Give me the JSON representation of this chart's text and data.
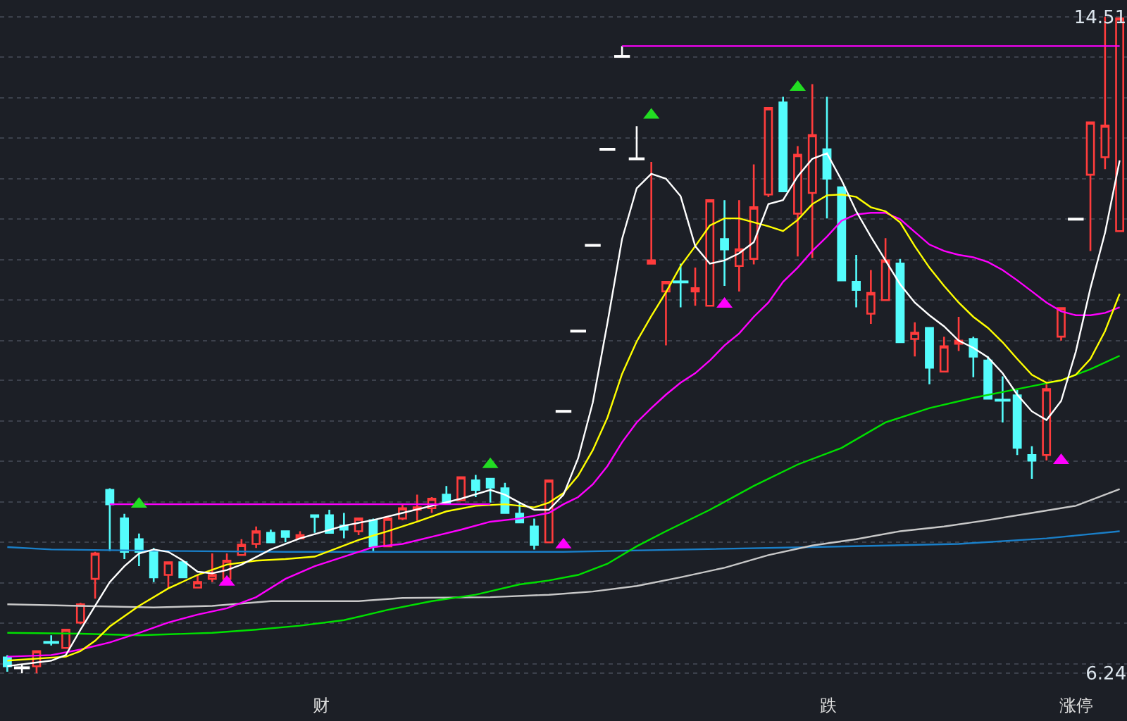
{
  "chart_data": {
    "type": "candlestick",
    "categories": [
      null,
      null,
      null,
      null,
      null,
      null,
      null,
      null,
      null,
      null,
      null,
      null,
      null,
      null,
      null,
      null,
      null,
      null,
      null,
      null,
      null,
      null,
      null,
      null,
      null,
      null,
      null,
      null,
      null,
      null,
      null,
      null,
      null,
      null,
      null,
      null,
      null,
      null,
      null,
      null,
      null,
      null,
      null,
      null,
      null,
      null,
      null,
      null,
      null,
      null,
      null,
      null,
      null,
      null,
      null,
      null,
      null,
      null,
      null,
      null,
      null,
      null,
      null,
      null,
      null,
      null,
      null,
      null,
      null,
      null,
      null,
      null,
      null,
      null,
      null,
      null,
      null
    ],
    "ohlc": [
      [
        6.44,
        6.47,
        6.26,
        6.33
      ],
      [
        6.31,
        6.36,
        6.24,
        6.31
      ],
      [
        6.33,
        6.52,
        6.24,
        6.52
      ],
      [
        6.63,
        6.72,
        6.59,
        6.63
      ],
      [
        6.56,
        6.79,
        6.56,
        6.79
      ],
      [
        6.88,
        7.13,
        6.86,
        7.11
      ],
      [
        7.43,
        7.77,
        7.18,
        7.75
      ],
      [
        8.55,
        8.57,
        7.78,
        8.37
      ],
      [
        8.19,
        8.25,
        7.68,
        7.77
      ],
      [
        7.93,
        8.0,
        7.59,
        7.77
      ],
      [
        7.77,
        7.82,
        7.39,
        7.45
      ],
      [
        7.48,
        7.64,
        7.31,
        7.64
      ],
      [
        7.64,
        7.66,
        7.45,
        7.45
      ],
      [
        7.32,
        7.48,
        7.32,
        7.39
      ],
      [
        7.43,
        7.75,
        7.39,
        7.48
      ],
      [
        7.43,
        7.75,
        7.43,
        7.66
      ],
      [
        7.73,
        7.93,
        7.73,
        7.86
      ],
      [
        7.87,
        8.09,
        7.82,
        8.03
      ],
      [
        8.01,
        8.05,
        7.89,
        7.89
      ],
      [
        8.03,
        8.03,
        7.89,
        7.96
      ],
      [
        7.94,
        8.03,
        7.94,
        7.98
      ],
      [
        8.23,
        8.23,
        8.01,
        8.21
      ],
      [
        8.23,
        8.3,
        8.01,
        8.01
      ],
      [
        8.1,
        8.26,
        7.94,
        8.05
      ],
      [
        8.03,
        8.19,
        7.98,
        8.19
      ],
      [
        8.17,
        8.19,
        7.78,
        7.84
      ],
      [
        7.84,
        8.21,
        7.84,
        8.19
      ],
      [
        8.19,
        8.37,
        8.17,
        8.32
      ],
      [
        8.3,
        8.49,
        8.16,
        8.33
      ],
      [
        8.32,
        8.46,
        8.26,
        8.44
      ],
      [
        8.49,
        8.6,
        8.39,
        8.39
      ],
      [
        8.42,
        8.71,
        8.42,
        8.71
      ],
      [
        8.67,
        8.74,
        8.46,
        8.55
      ],
      [
        8.69,
        8.69,
        8.39,
        8.58
      ],
      [
        8.57,
        8.64,
        8.26,
        8.26
      ],
      [
        8.25,
        8.39,
        8.14,
        8.14
      ],
      [
        8.09,
        8.19,
        7.8,
        7.86
      ],
      [
        7.89,
        8.67,
        7.89,
        8.67
      ],
      [
        9.54,
        9.54,
        9.54,
        9.54
      ],
      [
        10.55,
        10.55,
        10.55,
        10.55
      ],
      [
        11.63,
        11.63,
        11.63,
        11.63
      ],
      [
        12.84,
        12.84,
        12.84,
        12.84
      ],
      [
        14.01,
        14.14,
        14.01,
        14.01
      ],
      [
        12.72,
        13.13,
        12.72,
        12.72
      ],
      [
        11.4,
        12.68,
        11.4,
        11.44
      ],
      [
        11.05,
        11.17,
        10.37,
        11.17
      ],
      [
        11.17,
        11.4,
        10.85,
        11.17
      ],
      [
        11.05,
        11.35,
        10.87,
        11.09
      ],
      [
        10.87,
        12.2,
        10.87,
        12.2
      ],
      [
        11.71,
        12.2,
        11.12,
        11.58
      ],
      [
        11.37,
        12.2,
        11.05,
        11.58
      ],
      [
        11.46,
        12.65,
        11.39,
        12.11
      ],
      [
        12.27,
        13.36,
        12.24,
        13.36
      ],
      [
        13.43,
        13.5,
        12.31,
        12.31
      ],
      [
        12.03,
        12.88,
        11.49,
        12.77
      ],
      [
        12.29,
        13.66,
        11.47,
        13.02
      ],
      [
        12.84,
        13.5,
        11.97,
        12.47
      ],
      [
        12.36,
        12.36,
        11.19,
        11.19
      ],
      [
        11.17,
        11.51,
        10.85,
        11.07
      ],
      [
        10.77,
        11.32,
        10.64,
        11.03
      ],
      [
        10.94,
        11.72,
        10.94,
        11.44
      ],
      [
        11.4,
        11.46,
        10.41,
        10.41
      ],
      [
        10.45,
        10.66,
        10.23,
        10.53
      ],
      [
        10.59,
        10.59,
        9.88,
        10.09
      ],
      [
        10.04,
        10.48,
        10.04,
        10.36
      ],
      [
        10.39,
        10.73,
        10.3,
        10.43
      ],
      [
        10.45,
        10.48,
        9.97,
        10.23
      ],
      [
        10.18,
        10.23,
        9.7,
        9.7
      ],
      [
        9.68,
        9.98,
        9.4,
        9.68
      ],
      [
        9.74,
        9.81,
        8.99,
        9.08
      ],
      [
        8.99,
        9.1,
        8.69,
        8.92
      ],
      [
        8.99,
        9.88,
        8.92,
        9.82
      ],
      [
        10.48,
        10.84,
        10.43,
        10.84
      ],
      [
        11.96,
        11.96,
        11.96,
        11.96
      ],
      [
        12.52,
        13.18,
        11.56,
        13.18
      ],
      [
        12.74,
        14.51,
        12.59,
        13.14
      ],
      [
        11.81,
        14.49,
        11.81,
        14.49
      ]
    ],
    "colors": [
      "#54fcfc",
      "#ffffff",
      "#ff3c3c",
      "#54fcfc",
      "#ff3c3c",
      "#ff3c3c",
      "#ff3c3c",
      "#54fcfc",
      "#54fcfc",
      "#54fcfc",
      "#54fcfc",
      "#ff3c3c",
      "#54fcfc",
      "#ff3c3c",
      "#ff3c3c",
      "#ff3c3c",
      "#ff3c3c",
      "#ff3c3c",
      "#54fcfc",
      "#54fcfc",
      "#ff3c3c",
      "#54fcfc",
      "#54fcfc",
      "#54fcfc",
      "#ff3c3c",
      "#54fcfc",
      "#ff3c3c",
      "#ff3c3c",
      "#ff3c3c",
      "#ff3c3c",
      "#54fcfc",
      "#ff3c3c",
      "#54fcfc",
      "#54fcfc",
      "#54fcfc",
      "#54fcfc",
      "#54fcfc",
      "#ff3c3c",
      "#ffffff",
      "#ffffff",
      "#ffffff",
      "#ffffff",
      "#ffffff",
      "#ffffff",
      "#ff3c3c",
      "#ff3c3c",
      "#54fcfc",
      "#ff3c3c",
      "#ff3c3c",
      "#54fcfc",
      "#ff3c3c",
      "#ff3c3c",
      "#ff3c3c",
      "#54fcfc",
      "#ff3c3c",
      "#ff3c3c",
      "#54fcfc",
      "#54fcfc",
      "#54fcfc",
      "#ff3c3c",
      "#ff3c3c",
      "#54fcfc",
      "#ff3c3c",
      "#54fcfc",
      "#ff3c3c",
      "#ff3c3c",
      "#54fcfc",
      "#54fcfc",
      "#54fcfc",
      "#54fcfc",
      "#54fcfc",
      "#ff3c3c",
      "#ff3c3c",
      "#ffffff",
      "#ff3c3c",
      "#ff3c3c",
      "#ff3c3c"
    ],
    "series": [
      {
        "type": "line",
        "color": "#1a7fc8",
        "values": [
          7.83,
          null,
          null,
          7.8,
          null,
          null,
          null,
          null,
          null,
          null,
          null,
          null,
          7.78,
          null,
          null,
          null,
          null,
          null,
          null,
          7.77,
          null,
          null,
          null,
          null,
          null,
          null,
          null,
          null,
          null,
          null,
          null,
          null,
          null,
          null,
          null,
          null,
          null,
          null,
          7.77,
          null,
          null,
          null,
          null,
          null,
          null,
          null,
          null,
          null,
          null,
          null,
          null,
          null,
          null,
          null,
          null,
          7.83,
          null,
          null,
          null,
          null,
          null,
          null,
          null,
          null,
          null,
          7.87,
          null,
          null,
          null,
          null,
          null,
          7.94,
          null,
          null,
          null,
          null,
          8.03
        ]
      },
      {
        "type": "line",
        "color": "#c8c8c8",
        "values": [
          7.11,
          null,
          null,
          null,
          null,
          7.09,
          null,
          null,
          null,
          null,
          7.07,
          null,
          null,
          null,
          7.09,
          null,
          null,
          null,
          7.15,
          null,
          null,
          null,
          null,
          null,
          7.15,
          null,
          null,
          7.19,
          null,
          null,
          null,
          null,
          null,
          7.2,
          null,
          null,
          null,
          7.23,
          null,
          null,
          7.27,
          null,
          null,
          7.34,
          null,
          null,
          7.45,
          null,
          null,
          7.57,
          null,
          null,
          7.73,
          null,
          null,
          7.85,
          null,
          null,
          7.93,
          null,
          null,
          8.03,
          null,
          null,
          8.09,
          null,
          null,
          8.17,
          null,
          null,
          8.26,
          null,
          null,
          8.35,
          null,
          null,
          8.56
        ]
      },
      {
        "type": "line",
        "color": "#00e000",
        "values": [
          6.75,
          null,
          null,
          null,
          null,
          6.74,
          null,
          null,
          null,
          6.72,
          null,
          null,
          null,
          null,
          6.75,
          null,
          null,
          6.79,
          null,
          null,
          6.84,
          null,
          null,
          6.91,
          null,
          null,
          7.04,
          null,
          null,
          7.15,
          null,
          null,
          7.23,
          null,
          null,
          7.36,
          null,
          7.41,
          null,
          7.48,
          null,
          7.62,
          null,
          7.84,
          null,
          8.03,
          null,
          null,
          8.3,
          null,
          null,
          8.6,
          null,
          null,
          8.87,
          null,
          null,
          9.08,
          null,
          null,
          9.4,
          null,
          null,
          9.58,
          null,
          null,
          9.71,
          null,
          null,
          9.82,
          null,
          null,
          9.93,
          null,
          10.07,
          null,
          10.24
        ]
      },
      {
        "type": "line",
        "color": "#ff00ff",
        "values": [
          6.45,
          null,
          null,
          6.47,
          null,
          6.54,
          null,
          6.63,
          null,
          6.75,
          null,
          6.88,
          null,
          6.98,
          null,
          7.06,
          null,
          7.2,
          null,
          7.43,
          null,
          7.59,
          null,
          7.71,
          null,
          7.83,
          null,
          7.87,
          null,
          7.96,
          null,
          8.05,
          null,
          8.15,
          null,
          8.19,
          null,
          8.26,
          8.37,
          8.46,
          8.62,
          8.85,
          9.15,
          9.4,
          9.58,
          9.75,
          9.9,
          10.02,
          10.18,
          10.37,
          10.52,
          10.73,
          10.91,
          11.17,
          11.35,
          11.56,
          11.74,
          11.94,
          12.02,
          12.04,
          12.04,
          11.96,
          11.8,
          11.64,
          11.56,
          11.51,
          11.48,
          11.42,
          11.32,
          11.19,
          11.05,
          10.91,
          10.8,
          10.75,
          10.75,
          10.78,
          10.85
        ]
      },
      {
        "type": "line",
        "color": "#ffff00",
        "values": [
          6.4,
          null,
          null,
          null,
          6.45,
          6.52,
          6.65,
          6.83,
          null,
          7.09,
          null,
          7.31,
          null,
          7.48,
          null,
          7.61,
          null,
          7.66,
          null,
          7.68,
          null,
          7.71,
          null,
          null,
          7.92,
          null,
          8.03,
          null,
          8.15,
          null,
          8.28,
          null,
          8.35,
          null,
          8.37,
          null,
          8.33,
          8.39,
          8.51,
          8.73,
          9.05,
          9.46,
          10.01,
          10.42,
          10.74,
          11.04,
          11.37,
          11.62,
          11.88,
          11.97,
          11.97,
          null,
          11.87,
          11.81,
          11.95,
          12.15,
          12.26,
          12.27,
          12.24,
          12.11,
          12.06,
          11.92,
          11.62,
          11.35,
          11.12,
          10.91,
          10.73,
          10.59,
          10.41,
          10.2,
          10.0,
          9.9,
          9.93,
          10.0,
          10.2,
          10.55,
          11.02
        ]
      },
      {
        "type": "line",
        "color": "#ffffff",
        "values": [
          6.33,
          null,
          null,
          6.4,
          6.47,
          6.79,
          7.09,
          7.39,
          7.59,
          7.75,
          7.8,
          7.77,
          7.66,
          7.52,
          7.5,
          7.54,
          7.61,
          null,
          7.8,
          null,
          7.94,
          null,
          null,
          8.1,
          null,
          8.17,
          null,
          8.26,
          null,
          8.35,
          null,
          8.44,
          null,
          8.55,
          8.49,
          8.39,
          8.3,
          8.3,
          8.49,
          8.95,
          9.65,
          10.65,
          11.71,
          12.35,
          12.53,
          12.47,
          12.25,
          11.62,
          11.4,
          11.44,
          11.53,
          11.67,
          12.15,
          12.2,
          12.5,
          12.72,
          12.79,
          12.45,
          12.06,
          11.74,
          11.44,
          11.14,
          10.91,
          10.75,
          10.61,
          10.43,
          10.34,
          10.22,
          10.02,
          9.75,
          9.54,
          9.43,
          9.67,
          10.29,
          11.09,
          11.79,
          12.7
        ]
      },
      {
        "type": "line",
        "color": "#ff00ff",
        "values": [
          null,
          null,
          null,
          null,
          null,
          null,
          null,
          8.37,
          null,
          null,
          null,
          null,
          null,
          null,
          null,
          null,
          null,
          null,
          null,
          null,
          null,
          null,
          null,
          null,
          null,
          null,
          null,
          null,
          null,
          null,
          null,
          null,
          null,
          8.37,
          null,
          null,
          null,
          null,
          null,
          null,
          null,
          null,
          null,
          null,
          null,
          null,
          null,
          null,
          null,
          null,
          null,
          null,
          null,
          null,
          null,
          null,
          null,
          null,
          null,
          null,
          null,
          null,
          null,
          null,
          null,
          null,
          null,
          null,
          null,
          null,
          null,
          null,
          null,
          null,
          null,
          null,
          null
        ]
      },
      {
        "type": "line",
        "color": "#ff00ff",
        "values": [
          null,
          null,
          null,
          null,
          null,
          null,
          null,
          null,
          null,
          null,
          null,
          null,
          null,
          null,
          null,
          null,
          null,
          null,
          null,
          null,
          null,
          null,
          null,
          null,
          null,
          null,
          null,
          null,
          null,
          null,
          null,
          null,
          null,
          null,
          null,
          null,
          null,
          null,
          null,
          null,
          null,
          null,
          14.14,
          null,
          null,
          null,
          null,
          null,
          null,
          null,
          null,
          null,
          null,
          null,
          null,
          null,
          null,
          null,
          null,
          null,
          null,
          null,
          null,
          null,
          null,
          null,
          null,
          null,
          null,
          null,
          null,
          null,
          null,
          null,
          null,
          null,
          14.14
        ]
      },
      {
        "type": "scatter",
        "marker": "triangle",
        "color": "#22dd22",
        "values": [
          null,
          null,
          null,
          null,
          null,
          null,
          null,
          null,
          null,
          8.37,
          null,
          null,
          null,
          null,
          null,
          null,
          null,
          null,
          null,
          null,
          null,
          null,
          null,
          null,
          null,
          null,
          null,
          null,
          null,
          null,
          null,
          null,
          null,
          8.87,
          null,
          null,
          null,
          null,
          null,
          null,
          null,
          null,
          null,
          null,
          13.27,
          null,
          null,
          null,
          null,
          null,
          null,
          null,
          null,
          null,
          13.62,
          null,
          null,
          null,
          null,
          null,
          null,
          null,
          null,
          null,
          null,
          null,
          null,
          null,
          null,
          null,
          null,
          null,
          null,
          null,
          null,
          null,
          null
        ]
      },
      {
        "type": "scatter",
        "marker": "triangle",
        "color": "#ff00ff",
        "values": [
          null,
          null,
          null,
          null,
          null,
          null,
          null,
          null,
          null,
          null,
          null,
          null,
          null,
          null,
          null,
          7.39,
          null,
          null,
          null,
          null,
          null,
          null,
          null,
          null,
          null,
          null,
          null,
          null,
          null,
          null,
          null,
          null,
          null,
          null,
          null,
          null,
          null,
          null,
          7.86,
          null,
          null,
          null,
          null,
          null,
          null,
          null,
          null,
          null,
          null,
          10.89,
          null,
          null,
          null,
          null,
          null,
          null,
          null,
          null,
          null,
          null,
          null,
          null,
          null,
          null,
          null,
          null,
          null,
          null,
          null,
          null,
          null,
          null,
          8.92,
          null,
          null,
          null,
          null
        ]
      }
    ],
    "ylim": [
      5.64,
      14.72
    ],
    "yticks": [
      14.51,
      {
        "value": 14.0,
        "label": null
      },
      {
        "value": 13.49,
        "label": null
      },
      {
        "value": 12.98,
        "label": null
      },
      {
        "value": 12.47,
        "label": null
      },
      {
        "value": 11.96,
        "label": null
      },
      {
        "value": 11.45,
        "label": null
      },
      {
        "value": 10.94,
        "label": null
      },
      {
        "value": 10.43,
        "label": null
      },
      {
        "value": 9.93,
        "label": null
      },
      {
        "value": 9.42,
        "label": null
      },
      {
        "value": 8.91,
        "label": null
      },
      {
        "value": 8.4,
        "label": null
      },
      {
        "value": 7.89,
        "label": null
      },
      {
        "value": 7.38,
        "label": null
      },
      {
        "value": 6.87,
        "label": null
      },
      {
        "value": 6.36,
        "label": null
      },
      6.24
    ],
    "grid": "y",
    "tick_labels": "y",
    "annotations": [
      "财",
      "跌",
      "涨停"
    ]
  }
}
